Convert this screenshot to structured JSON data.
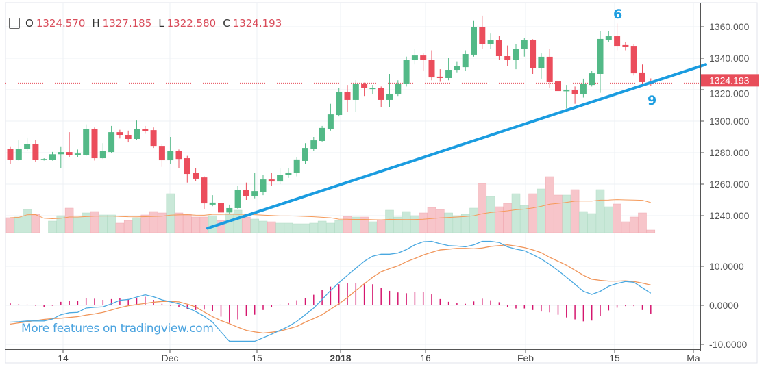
{
  "legend": {
    "o_label": "O",
    "o": "1324.570",
    "h_label": "H",
    "h": "1327.185",
    "l_label": "L",
    "l": "1322.580",
    "c_label": "C",
    "c": "1324.193",
    "icon": "plus-square-icon"
  },
  "watermark": "More features on tradingview.com",
  "colors": {
    "up": "#53b987",
    "down": "#eb4d5c",
    "vol_up": "#c9e8d8",
    "vol_down": "#f7c5ca",
    "vol_ma": "#f59a5a",
    "trendline": "#1a9ce0",
    "macd": "#4aa8e0",
    "signal": "#f0955a",
    "histogram": "#d5166e",
    "last_price": "#e84d5a"
  },
  "chart_data": [
    {
      "type": "candlestick",
      "price_axis": {
        "ticks": [
          "1360.000",
          "1340.000",
          "1320.000",
          "1300.000",
          "1280.000",
          "1260.000",
          "1240.000"
        ],
        "range": [
          1232,
          1367
        ]
      },
      "time_axis": {
        "ticks": [
          "14",
          "Dec",
          "15",
          "2018",
          "16",
          "Feb",
          "15",
          "Ma"
        ]
      },
      "last_price": {
        "value": 1324.193,
        "label": "1324.193"
      },
      "ohlc": [
        [
          1282.6,
          1284,
          1273,
          1275.6
        ],
        [
          1275.6,
          1287.8,
          1275,
          1282.6
        ],
        [
          1282.2,
          1289.6,
          1281,
          1285.6
        ],
        [
          1285.6,
          1288,
          1274,
          1275.6
        ],
        [
          1275.5,
          1276.5,
          1275,
          1276
        ],
        [
          1275.6,
          1280.5,
          1275,
          1279
        ],
        [
          1279,
          1284,
          1270,
          1280.4
        ],
        [
          1280.4,
          1293,
          1277,
          1278.3
        ],
        [
          1278.3,
          1282,
          1277,
          1279.5
        ],
        [
          1278.7,
          1298,
          1278,
          1295.2
        ],
        [
          1295.2,
          1296,
          1275,
          1276.5
        ],
        [
          1276.5,
          1286,
          1276,
          1281.3
        ],
        [
          1280.4,
          1297,
          1280,
          1293
        ],
        [
          1293,
          1294.5,
          1289,
          1291.3
        ],
        [
          1291.3,
          1294,
          1286.5,
          1288.7
        ],
        [
          1288.7,
          1300.4,
          1288,
          1294.8
        ],
        [
          1295.2,
          1297,
          1292,
          1293.5
        ],
        [
          1294.3,
          1296,
          1283,
          1284.3
        ],
        [
          1284.3,
          1285.5,
          1271,
          1275.2
        ],
        [
          1275.2,
          1290,
          1273,
          1281.3
        ],
        [
          1281.3,
          1282,
          1270,
          1276
        ],
        [
          1276.5,
          1278,
          1261,
          1266.5
        ],
        [
          1267,
          1270,
          1262,
          1263.5
        ],
        [
          1264.3,
          1265,
          1244,
          1247.8
        ],
        [
          1247,
          1253,
          1246,
          1248.3
        ],
        [
          1248,
          1251,
          1241,
          1242
        ],
        [
          1242,
          1247,
          1241,
          1244.8
        ],
        [
          1244.8,
          1259,
          1244,
          1256.5
        ],
        [
          1256.5,
          1261,
          1250,
          1252.2
        ],
        [
          1252.2,
          1267,
          1251,
          1255.6
        ],
        [
          1255.2,
          1266,
          1253,
          1263
        ],
        [
          1263,
          1267,
          1259,
          1261.7
        ],
        [
          1261.7,
          1270,
          1260,
          1266
        ],
        [
          1266,
          1270,
          1264,
          1267.4
        ],
        [
          1267,
          1277,
          1265,
          1275.7
        ],
        [
          1274.8,
          1286,
          1273,
          1283
        ],
        [
          1282.6,
          1290,
          1281,
          1287.8
        ],
        [
          1287.4,
          1297,
          1287,
          1295.7
        ],
        [
          1295.2,
          1311,
          1294,
          1304.3
        ],
        [
          1303.9,
          1321,
          1303,
          1318.7
        ],
        [
          1318.7,
          1323,
          1306,
          1313.5
        ],
        [
          1313.5,
          1326,
          1306,
          1323.9
        ],
        [
          1323.9,
          1324.5,
          1316,
          1320.9
        ],
        [
          1320.4,
          1323,
          1317,
          1321.3
        ],
        [
          1321.3,
          1322,
          1309,
          1313.5
        ],
        [
          1313.5,
          1330,
          1309,
          1317.4
        ],
        [
          1317.4,
          1326,
          1316,
          1323.5
        ],
        [
          1323.5,
          1341,
          1322,
          1339.1
        ],
        [
          1339.1,
          1346,
          1336,
          1341.7
        ],
        [
          1341.7,
          1343,
          1332,
          1339.1
        ],
        [
          1339.1,
          1345,
          1326,
          1327.8
        ],
        [
          1328.3,
          1333,
          1325,
          1327.4
        ],
        [
          1327.4,
          1340,
          1326,
          1332.6
        ],
        [
          1332.6,
          1338,
          1331,
          1334.8
        ],
        [
          1334.3,
          1345,
          1332,
          1342.6
        ],
        [
          1342.2,
          1364,
          1341,
          1359.6
        ],
        [
          1359.6,
          1367,
          1346,
          1349.1
        ],
        [
          1349.1,
          1356,
          1346,
          1351.3
        ],
        [
          1351.3,
          1354,
          1339,
          1341.3
        ],
        [
          1341.3,
          1348,
          1335,
          1339.1
        ],
        [
          1339.1,
          1349,
          1333,
          1346
        ],
        [
          1345.7,
          1353,
          1341,
          1351.3
        ],
        [
          1351.3,
          1352,
          1330,
          1333.9
        ],
        [
          1333.9,
          1343,
          1327,
          1340.9
        ],
        [
          1340.9,
          1346,
          1321,
          1324.8
        ],
        [
          1325.2,
          1332,
          1314,
          1319.1
        ],
        [
          1319.1,
          1323,
          1308,
          1319.6
        ],
        [
          1319.6,
          1322,
          1311,
          1317
        ],
        [
          1317,
          1327,
          1315,
          1323.5
        ],
        [
          1323,
          1332,
          1322,
          1330.4
        ],
        [
          1330,
          1357,
          1318,
          1352.2
        ],
        [
          1351.3,
          1357,
          1350,
          1353.9
        ],
        [
          1353.9,
          1362,
          1345,
          1347.8
        ],
        [
          1348.3,
          1350,
          1345,
          1347.4
        ],
        [
          1347.8,
          1349,
          1329,
          1330.4
        ],
        [
          1330.9,
          1336,
          1323,
          1324.8
        ],
        [
          1324.57,
          1327.185,
          1322.58,
          1324.193
        ]
      ],
      "volume_relative": [
        22,
        23,
        34,
        27,
        0,
        17,
        25,
        36,
        23,
        29,
        31,
        26,
        26,
        14,
        18,
        22,
        26,
        31,
        29,
        57,
        29,
        27,
        23,
        23,
        25,
        18,
        28,
        33,
        23,
        20,
        17,
        16,
        14,
        14,
        13,
        13,
        14,
        17,
        14,
        18,
        24,
        23,
        23,
        16,
        19,
        33,
        23,
        31,
        25,
        29,
        37,
        34,
        29,
        25,
        27,
        36,
        72,
        53,
        38,
        43,
        57,
        40,
        57,
        64,
        82,
        55,
        55,
        63,
        31,
        28,
        63,
        38,
        42,
        16,
        23,
        29,
        4
      ],
      "trendline": {
        "start_price": 1232,
        "end_price": 1336
      },
      "annotations": [
        "6",
        "9"
      ]
    },
    {
      "type": "line",
      "indicator": "MACD",
      "y_axis": {
        "ticks": [
          "10.0000",
          "0.0000",
          "-10.0000"
        ],
        "range": [
          -10,
          17
        ]
      },
      "macd": [
        -4.3,
        -4.2,
        -4.0,
        -4.0,
        -4.0,
        -3.5,
        -2.4,
        -1.9,
        -1.8,
        -0.7,
        -0.5,
        -0.4,
        0.4,
        1.3,
        1.5,
        2.1,
        2.7,
        2.2,
        1.4,
        0.9,
        0.4,
        -0.6,
        -1.6,
        -2.8,
        -4.3,
        -6.8,
        -9.2,
        -9.2,
        -9.2,
        -9.2,
        -8.3,
        -7.4,
        -6.4,
        -5.4,
        -4.1,
        -2.4,
        -0.7,
        1.5,
        3.8,
        5.8,
        7.7,
        9.5,
        11.3,
        12.6,
        13.1,
        13.1,
        13.4,
        14.3,
        15.5,
        16.3,
        16.4,
        15.8,
        15.3,
        15.2,
        15.0,
        15.5,
        16.4,
        16.4,
        16.1,
        15.0,
        14.4,
        14.0,
        13.0,
        11.9,
        10.5,
        8.9,
        7.2,
        5.4,
        3.6,
        2.8,
        3.6,
        4.9,
        5.6,
        6.1,
        5.9,
        4.5,
        3.1
      ],
      "signal": [
        -4.8,
        -4.5,
        -4.2,
        -3.9,
        -3.6,
        -3.4,
        -3.3,
        -3.1,
        -2.9,
        -2.5,
        -2.2,
        -1.8,
        -1.2,
        -0.6,
        -0.1,
        0.2,
        0.5,
        0.8,
        1.0,
        1.0,
        0.9,
        0.3,
        -0.4,
        -1.7,
        -2.9,
        -3.9,
        -4.7,
        -5.6,
        -6.4,
        -6.8,
        -7.1,
        -6.9,
        -6.6,
        -6.0,
        -5.4,
        -4.3,
        -3.4,
        -2.4,
        -1.0,
        0.4,
        2.0,
        3.8,
        5.5,
        7.2,
        8.6,
        9.4,
        10.1,
        11.2,
        12.0,
        12.9,
        13.6,
        14.2,
        14.4,
        14.6,
        14.6,
        14.5,
        14.7,
        15.1,
        15.3,
        15.5,
        15.2,
        14.8,
        14.2,
        13.5,
        12.3,
        11.3,
        10.3,
        9.0,
        7.7,
        6.7,
        6.4,
        6.2,
        6.2,
        6.3,
        6.1,
        5.7,
        5.2
      ]
    }
  ]
}
